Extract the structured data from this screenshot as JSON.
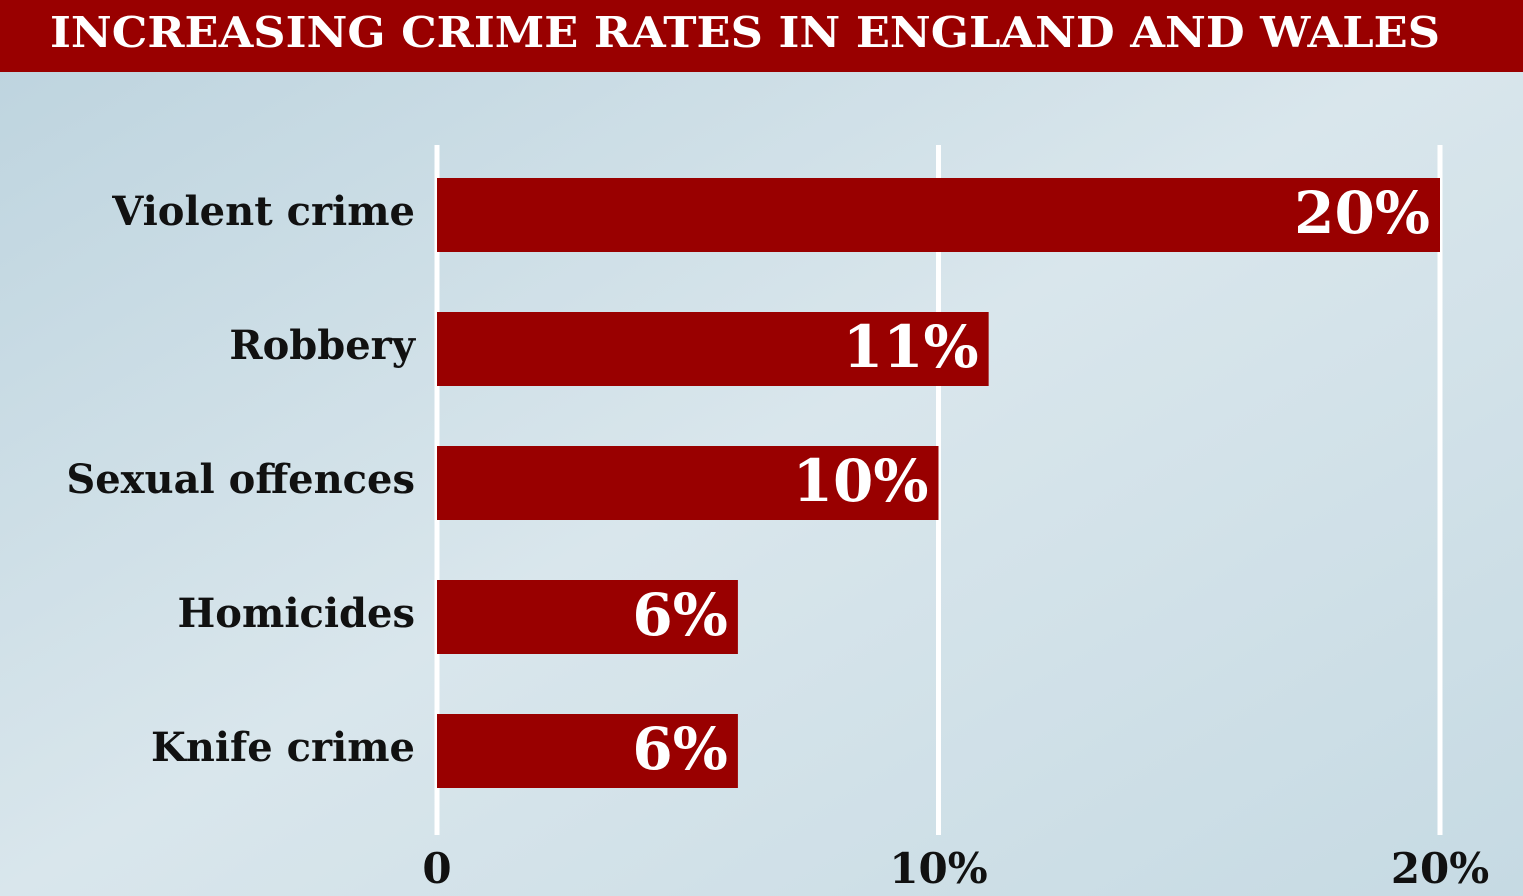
{
  "chart_data": {
    "type": "bar",
    "orientation": "horizontal",
    "title": "INCREASING CRIME RATES IN ENGLAND AND WALES",
    "categories": [
      "Violent crime",
      "Robbery",
      "Sexual offences",
      "Homicides",
      "Knife crime"
    ],
    "values": [
      20,
      11,
      10,
      6,
      6
    ],
    "value_labels": [
      "20%",
      "11%",
      "10%",
      "6%",
      "6%"
    ],
    "color": "#990000",
    "xlim": [
      0,
      20
    ],
    "xticks": [
      0,
      {
        "value": 10,
        "label": "10%"
      },
      {
        "value": 20,
        "label": "20%"
      }
    ],
    "grid": true
  }
}
